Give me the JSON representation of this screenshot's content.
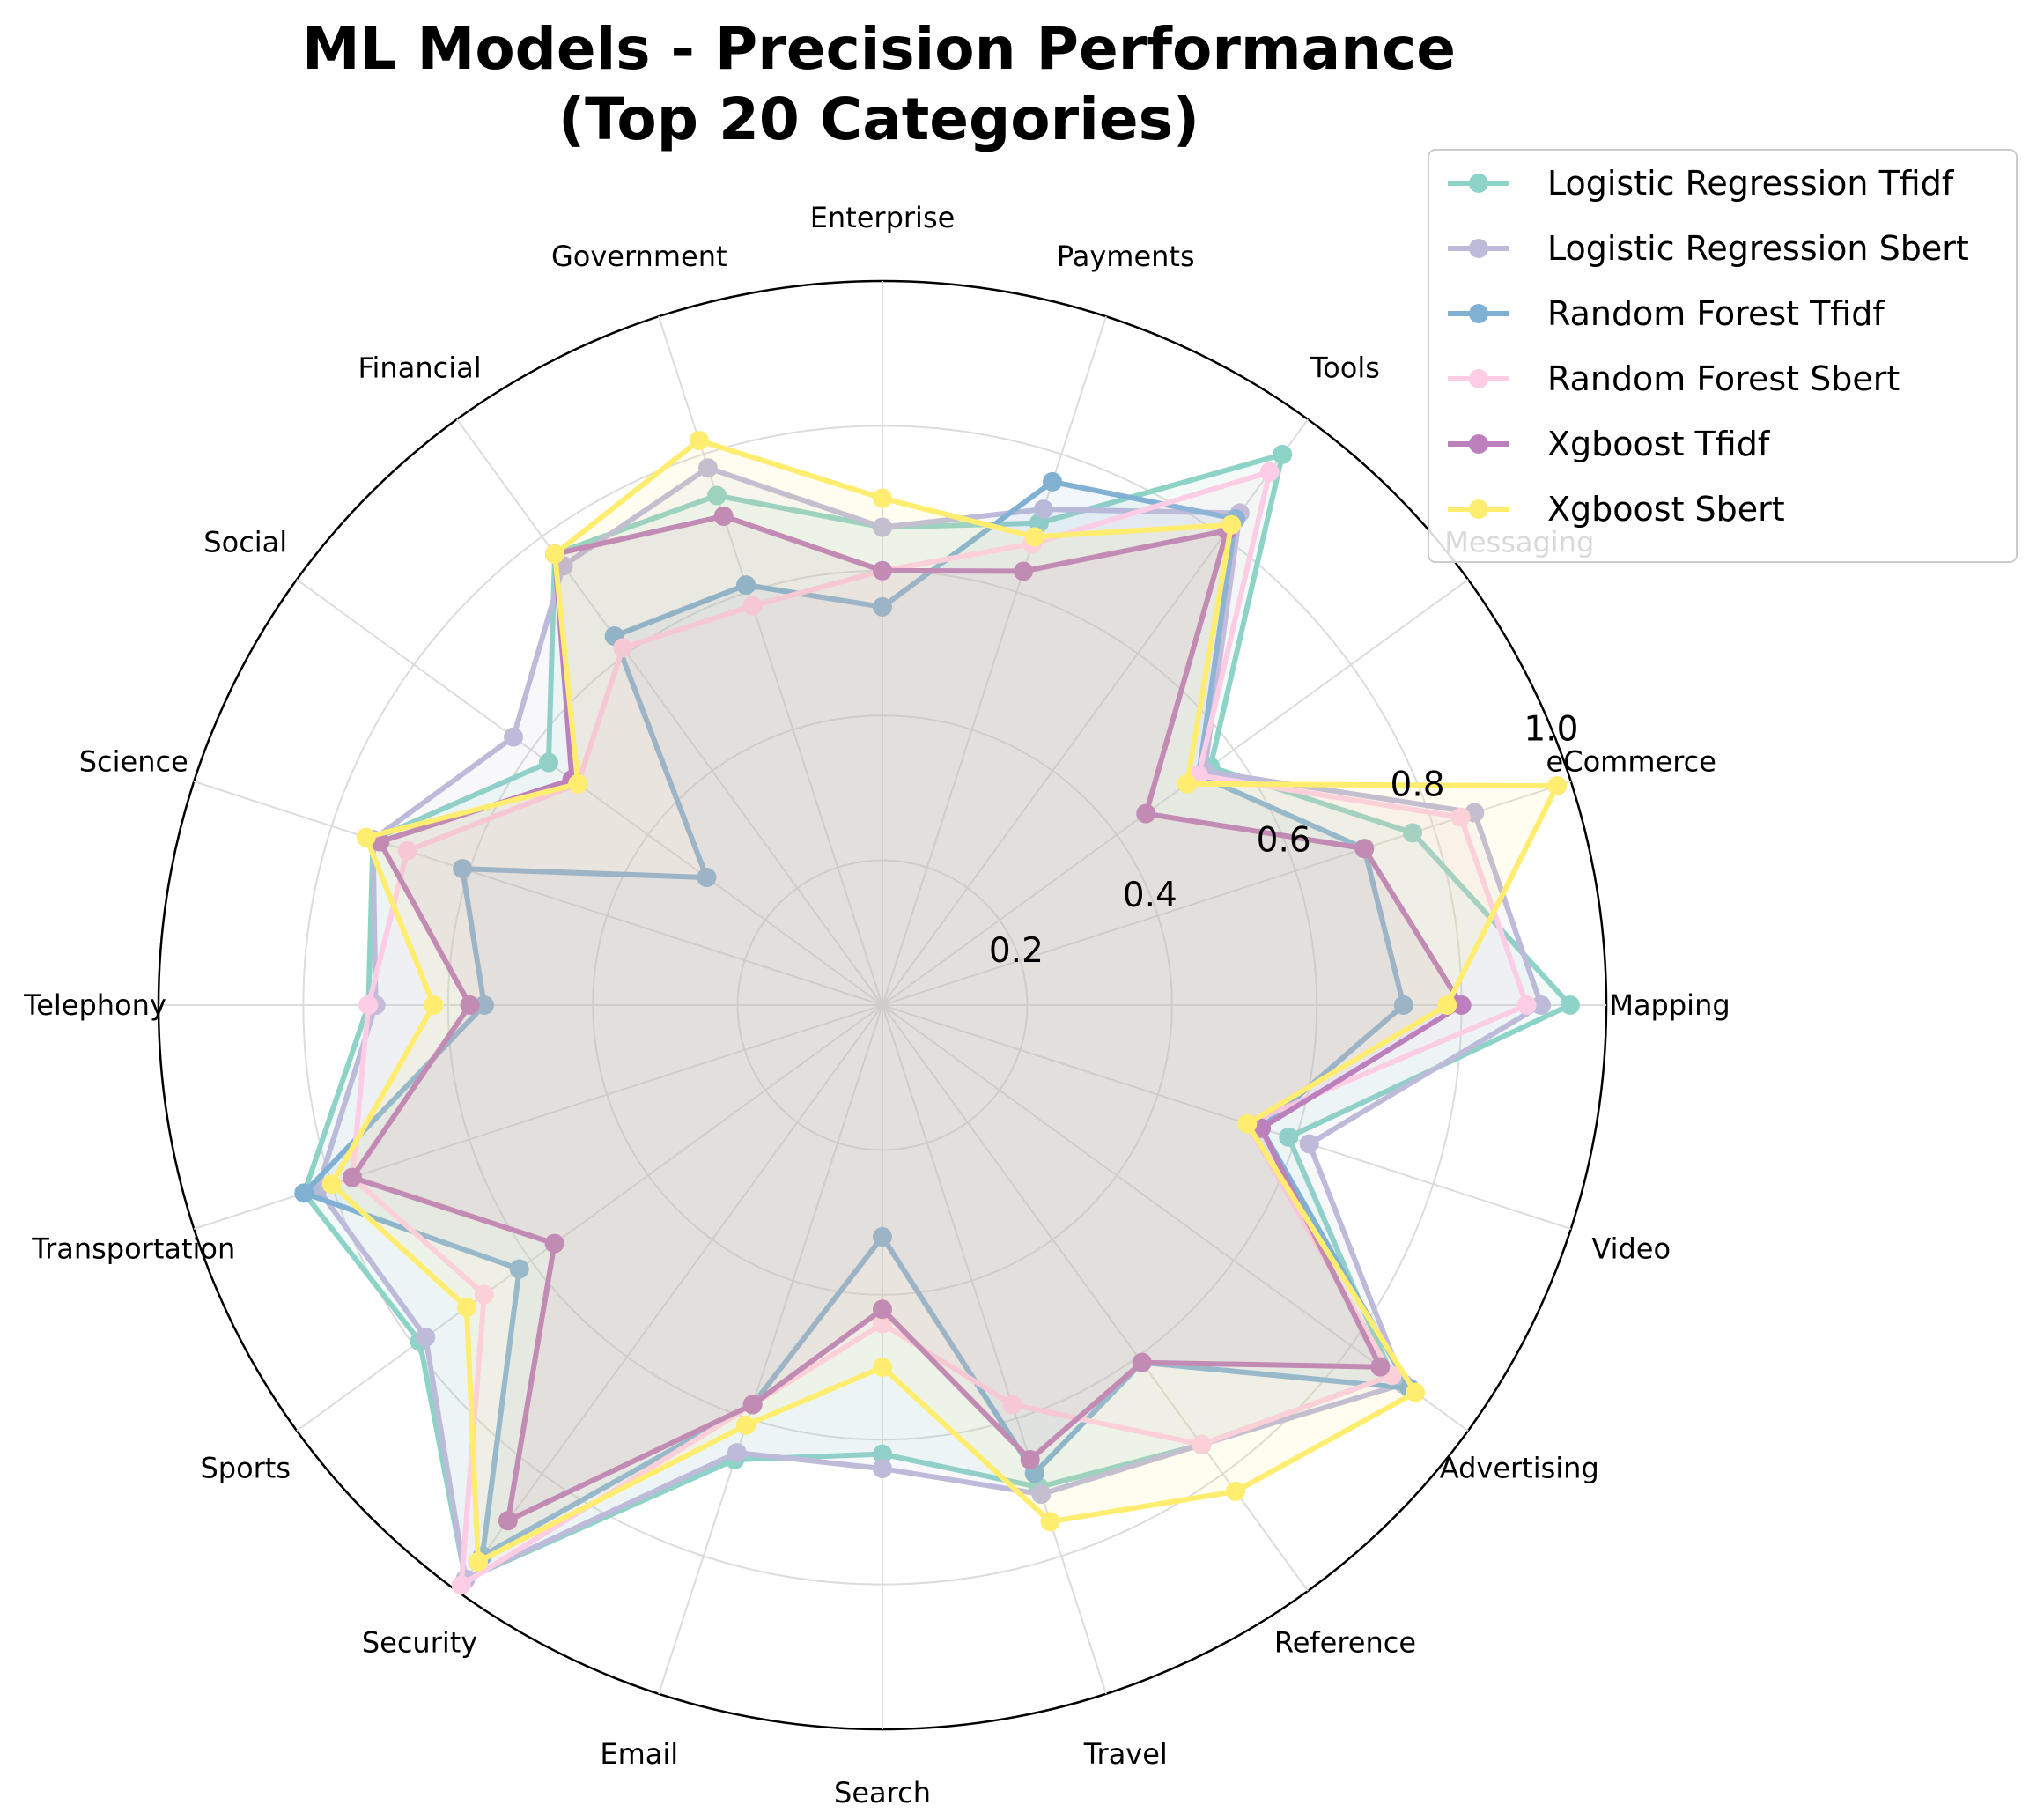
{
  "chart_data": {
    "type": "radar",
    "title_lines": [
      "ML Models - Precision Performance",
      "(Top 20 Categories)"
    ],
    "categories": [
      "Mapping",
      "eCommerce",
      "Messaging",
      "Tools",
      "Payments",
      "Enterprise",
      "Government",
      "Financial",
      "Social",
      "Science",
      "Telephony",
      "Transportation",
      "Sports",
      "Security",
      "Email",
      "Search",
      "Travel",
      "Reference",
      "Advertising",
      "Video"
    ],
    "r_ticks": [
      0.2,
      0.4,
      0.6,
      0.8,
      1.0
    ],
    "r_tick_labels": [
      "0.2",
      "0.4",
      "0.6",
      "0.8",
      "1.0"
    ],
    "rlim": [
      0,
      1.0
    ],
    "grid": true,
    "legend_position": "top-right",
    "series": [
      {
        "name": "Logistic Regression Tfidf",
        "color": "#8dd3c7",
        "values": [
          0.95,
          0.77,
          0.56,
          0.94,
          0.7,
          0.66,
          0.74,
          0.77,
          0.57,
          0.74,
          0.71,
          0.84,
          0.79,
          0.98,
          0.66,
          0.62,
          0.7,
          0.75,
          0.87,
          0.59
        ]
      },
      {
        "name": "Logistic Regression Sbert",
        "color": "#bebada",
        "values": [
          0.91,
          0.86,
          0.55,
          0.84,
          0.72,
          0.66,
          0.78,
          0.75,
          0.63,
          0.74,
          0.7,
          0.82,
          0.78,
          0.98,
          0.65,
          0.64,
          0.71,
          0.75,
          0.89,
          0.62
        ]
      },
      {
        "name": "Random Forest Tfidf",
        "color": "#80b1d3",
        "values": [
          0.72,
          0.7,
          0.54,
          0.83,
          0.76,
          0.55,
          0.61,
          0.63,
          0.3,
          0.61,
          0.55,
          0.84,
          0.62,
          0.94,
          0.58,
          0.32,
          0.68,
          0.61,
          0.9,
          0.55
        ]
      },
      {
        "name": "Random Forest Sbert",
        "color": "#fccde5",
        "values": [
          0.89,
          0.84,
          0.54,
          0.91,
          0.67,
          0.6,
          0.58,
          0.61,
          0.52,
          0.69,
          0.71,
          0.77,
          0.68,
          0.99,
          0.58,
          0.44,
          0.58,
          0.75,
          0.87,
          0.53
        ]
      },
      {
        "name": "Xgboost Tfidf",
        "color": "#bc80bd",
        "values": [
          0.8,
          0.7,
          0.45,
          0.81,
          0.63,
          0.6,
          0.71,
          0.77,
          0.53,
          0.73,
          0.57,
          0.77,
          0.56,
          0.88,
          0.58,
          0.42,
          0.66,
          0.61,
          0.85,
          0.55
        ]
      },
      {
        "name": "Xgboost Sbert",
        "color": "#ffed6f",
        "values": [
          0.78,
          0.98,
          0.52,
          0.82,
          0.68,
          0.7,
          0.82,
          0.77,
          0.52,
          0.75,
          0.62,
          0.8,
          0.71,
          0.95,
          0.61,
          0.5,
          0.75,
          0.83,
          0.91,
          0.53
        ]
      }
    ]
  }
}
